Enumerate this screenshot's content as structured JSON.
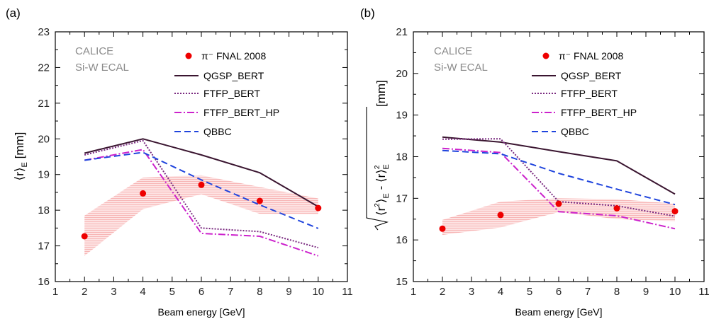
{
  "chart_data": [
    {
      "type": "line",
      "panel_label": "(a)",
      "xlabel": "Beam energy [GeV]",
      "ylabel": {
        "main": "⟨r⟩",
        "sub": "E",
        "unit": " [mm]"
      },
      "xlim": [
        1,
        11
      ],
      "ylim": [
        16,
        23
      ],
      "x_ticks": [
        1,
        2,
        3,
        4,
        5,
        6,
        7,
        8,
        9,
        10,
        11
      ],
      "y_ticks": [
        16,
        17,
        18,
        19,
        20,
        21,
        22,
        23
      ],
      "annotation": [
        "CALICE",
        "Si-W ECAL"
      ],
      "legend": {
        "position": "top-right"
      },
      "data_series": {
        "name": "π⁻ FNAL 2008",
        "x": [
          2,
          4,
          6,
          8,
          10
        ],
        "y": [
          17.27,
          18.47,
          18.71,
          18.26,
          18.06
        ],
        "band_upper": [
          17.85,
          18.92,
          18.98,
          18.65,
          18.33
        ],
        "band_lower": [
          16.72,
          18.03,
          18.45,
          17.9,
          17.89
        ]
      },
      "series": [
        {
          "name": "QGSP_BERT",
          "x": [
            2,
            4,
            6,
            8,
            10
          ],
          "y": [
            19.6,
            20.0,
            19.55,
            19.05,
            18.1
          ]
        },
        {
          "name": "FTFP_BERT",
          "x": [
            2,
            4,
            6,
            8,
            10
          ],
          "y": [
            19.55,
            19.95,
            17.5,
            17.4,
            16.95
          ]
        },
        {
          "name": "FTFP_BERT_HP",
          "x": [
            2,
            4,
            6,
            8,
            10
          ],
          "y": [
            19.4,
            19.7,
            17.35,
            17.27,
            16.72
          ]
        },
        {
          "name": "QBBC",
          "x": [
            2,
            4,
            6,
            8,
            10
          ],
          "y": [
            19.4,
            19.62,
            18.85,
            18.15,
            17.49
          ]
        }
      ]
    },
    {
      "type": "line",
      "panel_label": "(b)",
      "xlabel": "Beam energy [GeV]",
      "ylabel": {
        "unit": " [mm]"
      },
      "xlim": [
        1,
        11
      ],
      "ylim": [
        15,
        21
      ],
      "x_ticks": [
        1,
        2,
        3,
        4,
        5,
        6,
        7,
        8,
        9,
        10,
        11
      ],
      "y_ticks": [
        15,
        16,
        17,
        18,
        19,
        20,
        21
      ],
      "annotation": [
        "CALICE",
        "Si-W ECAL"
      ],
      "legend": {
        "position": "top-right"
      },
      "data_series": {
        "name": "π⁻ FNAL 2008",
        "x": [
          2,
          4,
          6,
          8,
          10
        ],
        "y": [
          16.27,
          16.6,
          16.87,
          16.76,
          16.69
        ],
        "band_upper": [
          16.48,
          16.92,
          17.0,
          16.98,
          16.87
        ],
        "band_lower": [
          16.12,
          16.3,
          16.67,
          16.5,
          16.45
        ]
      },
      "series": [
        {
          "name": "QGSP_BERT",
          "x": [
            2,
            4,
            6,
            8,
            10
          ],
          "y": [
            18.47,
            18.35,
            18.12,
            17.9,
            17.1
          ]
        },
        {
          "name": "FTFP_BERT",
          "x": [
            2,
            4,
            6,
            8,
            10
          ],
          "y": [
            18.42,
            18.43,
            16.92,
            16.82,
            16.57
          ]
        },
        {
          "name": "FTFP_BERT_HP",
          "x": [
            2,
            4,
            6,
            8,
            10
          ],
          "y": [
            18.2,
            18.1,
            16.68,
            16.58,
            16.27
          ]
        },
        {
          "name": "QBBC",
          "x": [
            2,
            4,
            6,
            8,
            10
          ],
          "y": [
            18.15,
            18.07,
            17.6,
            17.22,
            16.85
          ]
        }
      ]
    }
  ]
}
